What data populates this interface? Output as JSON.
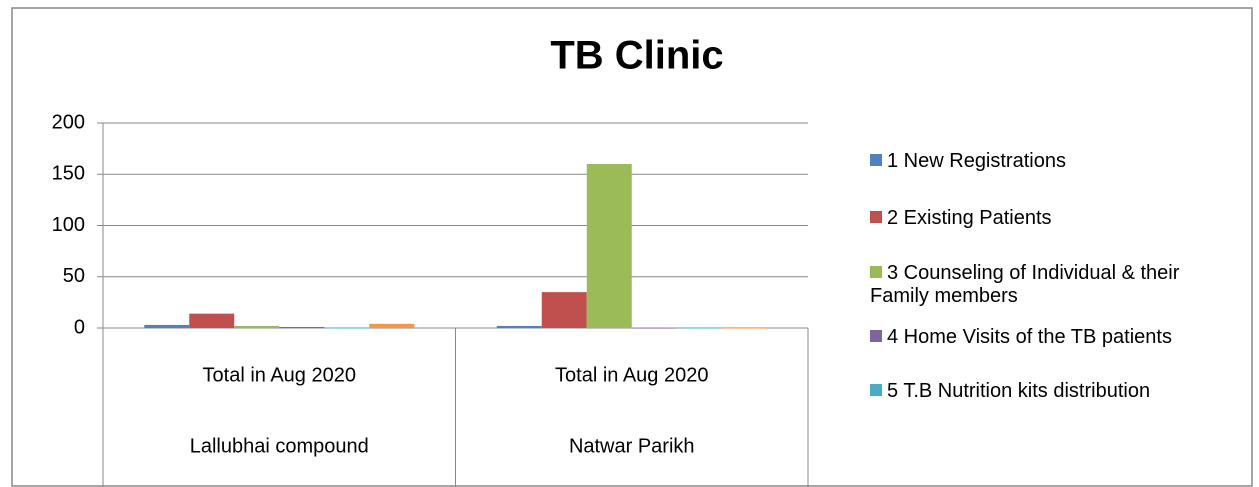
{
  "chart_data": {
    "type": "bar",
    "title": "TB Clinic",
    "categories": [
      "Total in Aug 2020",
      "Total in Aug 2020"
    ],
    "groups": [
      "Lallubhai compound",
      "Natwar Parikh"
    ],
    "series": [
      {
        "name": "1 New Registrations",
        "color": "#4f81bd",
        "values": [
          3,
          2
        ]
      },
      {
        "name": "2 Existing Patients",
        "color": "#c0504d",
        "values": [
          14,
          35
        ]
      },
      {
        "name": "3 Counseling of Individual & their Family members",
        "color": "#9bbb59",
        "values": [
          2,
          160
        ]
      },
      {
        "name": "4 Home Visits of the TB patients",
        "color": "#8064a2",
        "values": [
          1,
          0
        ]
      },
      {
        "name": "5 T.B Nutrition kits distribution",
        "color": "#4bacc6",
        "values": [
          0,
          0
        ]
      },
      {
        "color": "#f79646",
        "values": [
          4,
          0
        ]
      }
    ],
    "ylim": [
      0,
      200
    ],
    "yticks": [
      0,
      50,
      100,
      150,
      200
    ],
    "grid": true,
    "legend": "right"
  }
}
